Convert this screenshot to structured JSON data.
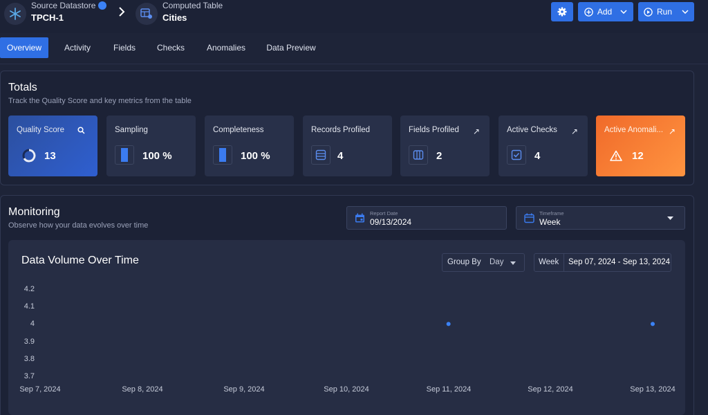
{
  "header": {
    "source_label": "Source Datastore",
    "source_value": "TPCH-1",
    "table_label": "Computed Table",
    "table_value": "Cities",
    "add_label": "Add",
    "run_label": "Run"
  },
  "tabs": [
    {
      "label": "Overview",
      "active": true
    },
    {
      "label": "Activity"
    },
    {
      "label": "Fields"
    },
    {
      "label": "Checks"
    },
    {
      "label": "Anomalies"
    },
    {
      "label": "Data Preview"
    }
  ],
  "totals": {
    "title": "Totals",
    "subtitle": "Track the Quality Score and key metrics from the table",
    "cards": [
      {
        "label": "Quality Score",
        "value": "13",
        "icon": "search-icon"
      },
      {
        "label": "Sampling",
        "value": "100 %"
      },
      {
        "label": "Completeness",
        "value": "100 %"
      },
      {
        "label": "Records Profiled",
        "value": "4"
      },
      {
        "label": "Fields Profiled",
        "value": "2",
        "icon": "arrow-up-right-icon"
      },
      {
        "label": "Active Checks",
        "value": "4",
        "icon": "arrow-up-right-icon"
      },
      {
        "label": "Active Anomali...",
        "value": "12",
        "icon": "arrow-up-right-icon"
      }
    ]
  },
  "monitoring": {
    "title": "Monitoring",
    "subtitle": "Observe how your data evolves over time",
    "report_date_label": "Report Date",
    "report_date_value": "09/13/2024",
    "timeframe_label": "Timeframe",
    "timeframe_value": "Week"
  },
  "chart_controls": {
    "group_by_label": "Group By",
    "group_by_value": "Day",
    "week_label": "Week",
    "week_value": "Sep 07, 2024 - Sep 13, 2024"
  },
  "colors": {
    "accent": "#2f6fe4",
    "point": "#3b82f6",
    "anomaly_start": "#f06a2a",
    "anomaly_end": "#ff9440"
  },
  "chart_data": {
    "type": "scatter",
    "title": "Data Volume Over Time",
    "xlabel": "",
    "ylabel": "",
    "categories": [
      "Sep 7, 2024",
      "Sep 8, 2024",
      "Sep 9, 2024",
      "Sep 10, 2024",
      "Sep 11, 2024",
      "Sep 12, 2024",
      "Sep 13, 2024"
    ],
    "y_ticks": [
      "4.2",
      "4.1",
      "4",
      "3.9",
      "3.8",
      "3.7"
    ],
    "ylim": [
      3.7,
      4.2
    ],
    "points": [
      {
        "x": "Sep 11, 2024",
        "y": 4
      },
      {
        "x": "Sep 13, 2024",
        "y": 4
      }
    ],
    "grid": false
  }
}
